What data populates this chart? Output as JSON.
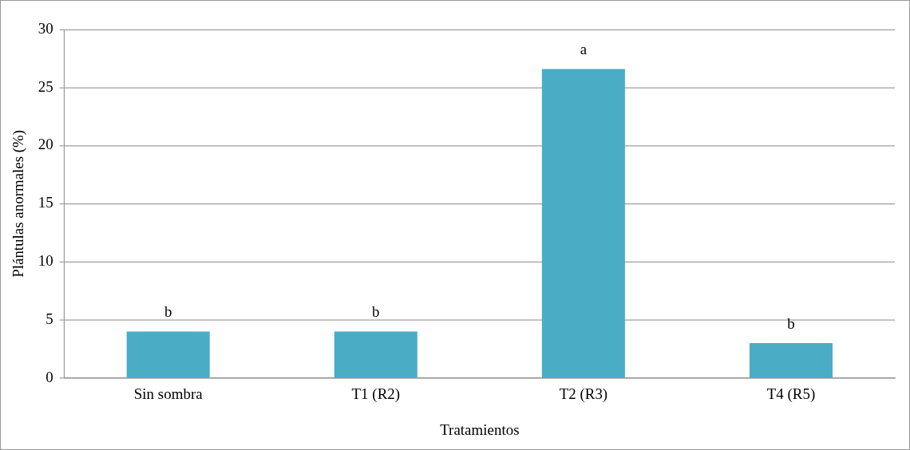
{
  "chart_data": {
    "type": "bar",
    "xlabel": "Tratamientos",
    "ylabel": "Plántulas anormales (%)",
    "categories": [
      "Sin sombra",
      "T1 (R2)",
      "T2 (R3)",
      "T4 (R5)"
    ],
    "values": [
      4,
      4,
      26.6,
      3
    ],
    "color": "#4bacc6",
    "ylim": [
      0,
      30
    ],
    "yticks": [
      0,
      5,
      10,
      15,
      20,
      25,
      30
    ],
    "grid": "y",
    "legend": false,
    "annotations": [
      {
        "text": "b",
        "x": "Sin sombra",
        "y": 4
      },
      {
        "text": "b",
        "x": "T1 (R2)",
        "y": 4
      },
      {
        "text": "a",
        "x": "T2 (R3)",
        "y": 26.6
      },
      {
        "text": "b",
        "x": "T4 (R5)",
        "y": 3
      }
    ]
  }
}
